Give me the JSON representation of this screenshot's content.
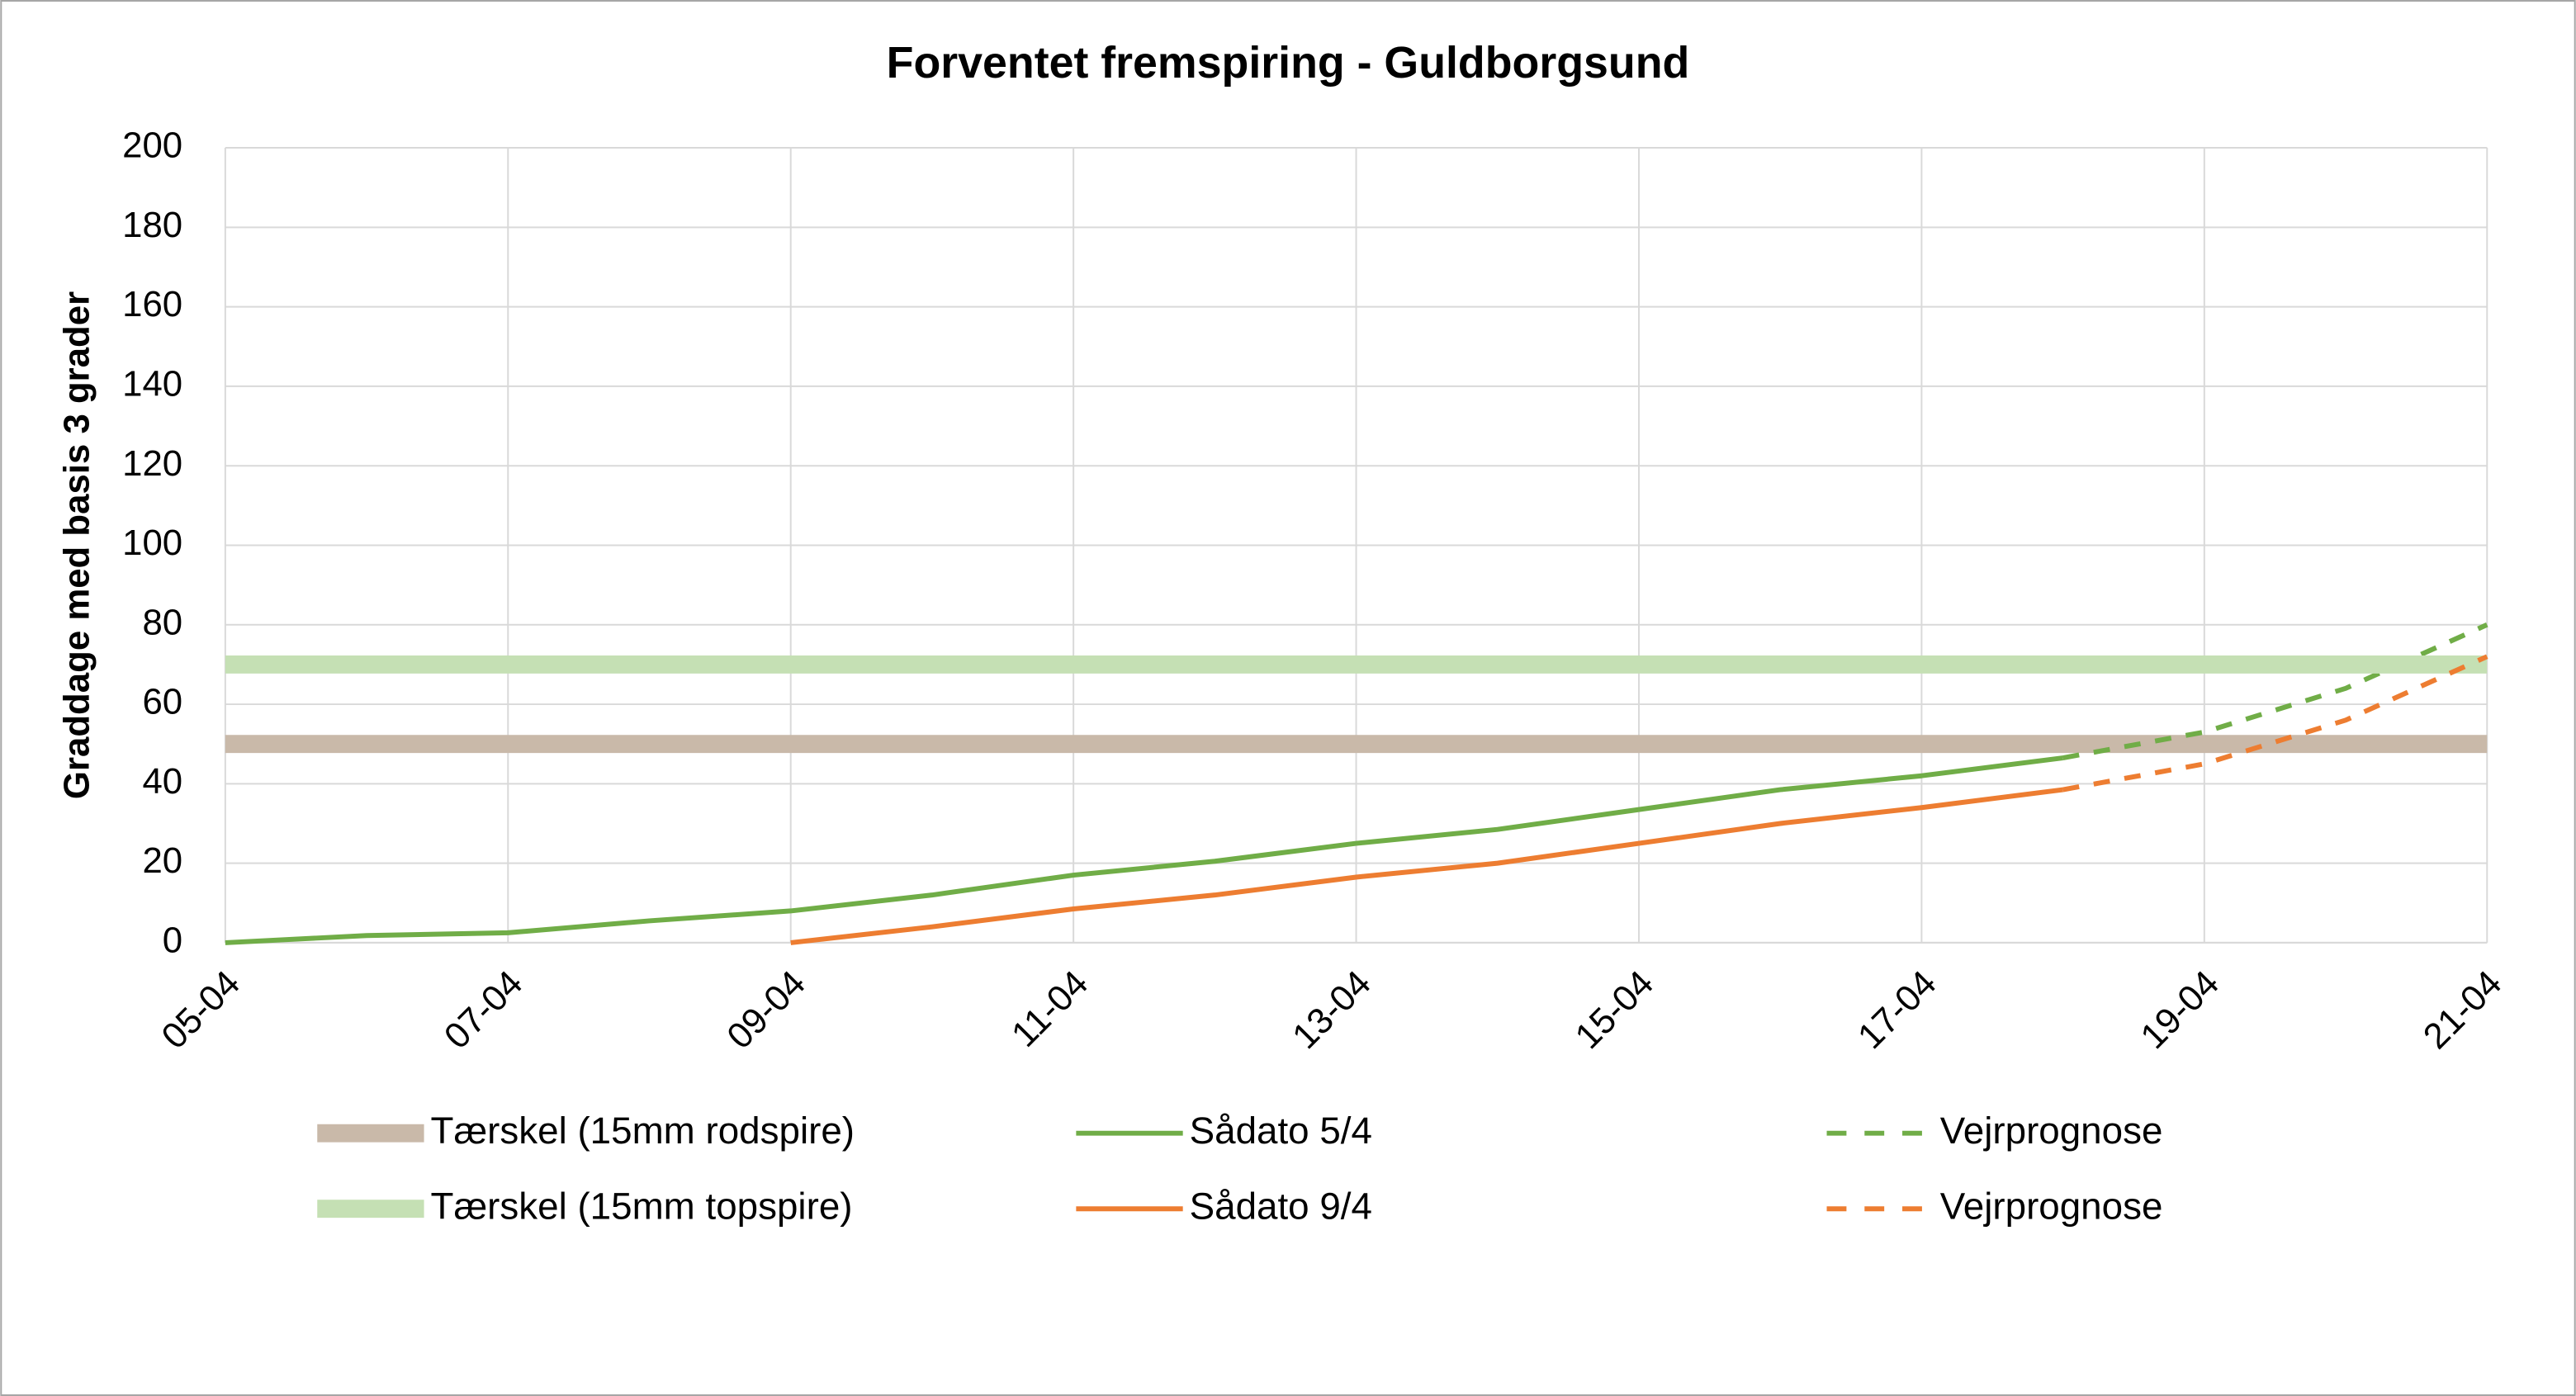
{
  "chart_data": {
    "type": "line",
    "title": "Forventet fremspiring - Guldborgsund",
    "y_label": "Graddage med basis 3 grader",
    "xlim": [
      5,
      21
    ],
    "xticks": [
      {
        "value": 5,
        "label": "05-04"
      },
      {
        "value": 7,
        "label": "07-04"
      },
      {
        "value": 9,
        "label": "09-04"
      },
      {
        "value": 11,
        "label": "11-04"
      },
      {
        "value": 13,
        "label": "13-04"
      },
      {
        "value": 15,
        "label": "15-04"
      },
      {
        "value": 17,
        "label": "17-04"
      },
      {
        "value": 19,
        "label": "19-04"
      },
      {
        "value": 21,
        "label": "21-04"
      }
    ],
    "ylim": [
      0,
      200
    ],
    "yticks": [
      0,
      20,
      40,
      60,
      80,
      100,
      120,
      140,
      160,
      180,
      200
    ],
    "grid": true,
    "series": [
      {
        "name": "Tærskel (15mm rodspire)",
        "color": "#c9b9a9",
        "line_style": "thick",
        "x": [
          5,
          21
        ],
        "values": [
          50,
          50
        ]
      },
      {
        "name": "Sådato 5/4",
        "color": "#70ad47",
        "line_style": "solid",
        "x": [
          5,
          6,
          7,
          8,
          9,
          10,
          11,
          12,
          13,
          14,
          15,
          16,
          17,
          18
        ],
        "values": [
          0,
          1.8,
          2.5,
          5.5,
          8,
          12,
          17,
          20.5,
          25,
          28.5,
          33.5,
          38.5,
          42,
          46.5
        ]
      },
      {
        "name": "Vejrprognose",
        "color": "#70ad47",
        "line_style": "dashed",
        "x": [
          18,
          19,
          20,
          21
        ],
        "values": [
          46.5,
          53,
          64,
          80
        ]
      },
      {
        "name": "Tærskel (15mm topspire)",
        "color": "#c5e0b4",
        "line_style": "thick",
        "x": [
          5,
          21
        ],
        "values": [
          70,
          70
        ]
      },
      {
        "name": "Sådato 9/4",
        "color": "#ed7d31",
        "line_style": "solid",
        "x": [
          9,
          10,
          11,
          12,
          13,
          14,
          15,
          16,
          17,
          18
        ],
        "values": [
          0,
          4,
          8.5,
          12,
          16.5,
          20,
          25,
          30,
          34,
          38.5
        ]
      },
      {
        "name": "Vejrprognose",
        "color": "#ed7d31",
        "line_style": "dashed",
        "x": [
          18,
          19,
          20,
          21
        ],
        "values": [
          38.5,
          45,
          56,
          72
        ]
      }
    ]
  }
}
